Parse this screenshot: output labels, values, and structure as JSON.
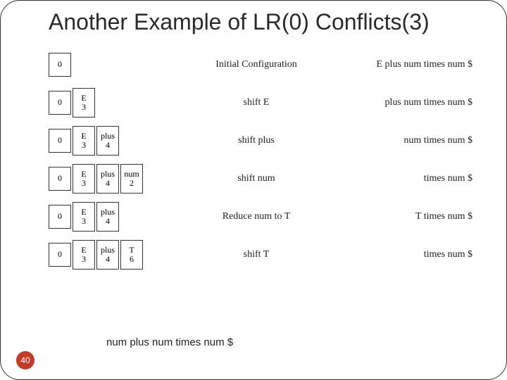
{
  "title": "Another Example of LR(0) Conflicts(3)",
  "pageNumber": "40",
  "bottomText": "num plus num times num $",
  "styling": {
    "slide_bg": "#ffffff",
    "slide_border_color": "#333333",
    "slide_border_radius": 28,
    "title_color": "#2a2a2a",
    "title_fontsize": 32,
    "cell_border_color": "#333333",
    "badge_bg": "#c33b27",
    "badge_fg": "#ffffff",
    "serif_font": "Georgia",
    "sans_font": "Segoe UI"
  },
  "rows": [
    {
      "stack": [
        {
          "sym": "",
          "state": "0"
        }
      ],
      "action": "Initial Configuration",
      "input": "E plus num times num $"
    },
    {
      "stack": [
        {
          "sym": "",
          "state": "0"
        },
        {
          "sym": "E",
          "state": "3"
        }
      ],
      "action": "shift E",
      "input": "plus num times num $"
    },
    {
      "stack": [
        {
          "sym": "",
          "state": "0"
        },
        {
          "sym": "E",
          "state": "3"
        },
        {
          "sym": "plus",
          "state": "4"
        }
      ],
      "action": "shift plus",
      "input": "num times num $"
    },
    {
      "stack": [
        {
          "sym": "",
          "state": "0"
        },
        {
          "sym": "E",
          "state": "3"
        },
        {
          "sym": "plus",
          "state": "4"
        },
        {
          "sym": "num",
          "state": "2"
        }
      ],
      "action": "shift num",
      "input": "times num $"
    },
    {
      "stack": [
        {
          "sym": "",
          "state": "0"
        },
        {
          "sym": "E",
          "state": "3"
        },
        {
          "sym": "plus",
          "state": "4"
        }
      ],
      "action": "Reduce num to T",
      "input": "T times num $"
    },
    {
      "stack": [
        {
          "sym": "",
          "state": "0"
        },
        {
          "sym": "E",
          "state": "3"
        },
        {
          "sym": "plus",
          "state": "4"
        },
        {
          "sym": "T",
          "state": "6"
        }
      ],
      "action": "shift T",
      "input": "times num $"
    }
  ]
}
